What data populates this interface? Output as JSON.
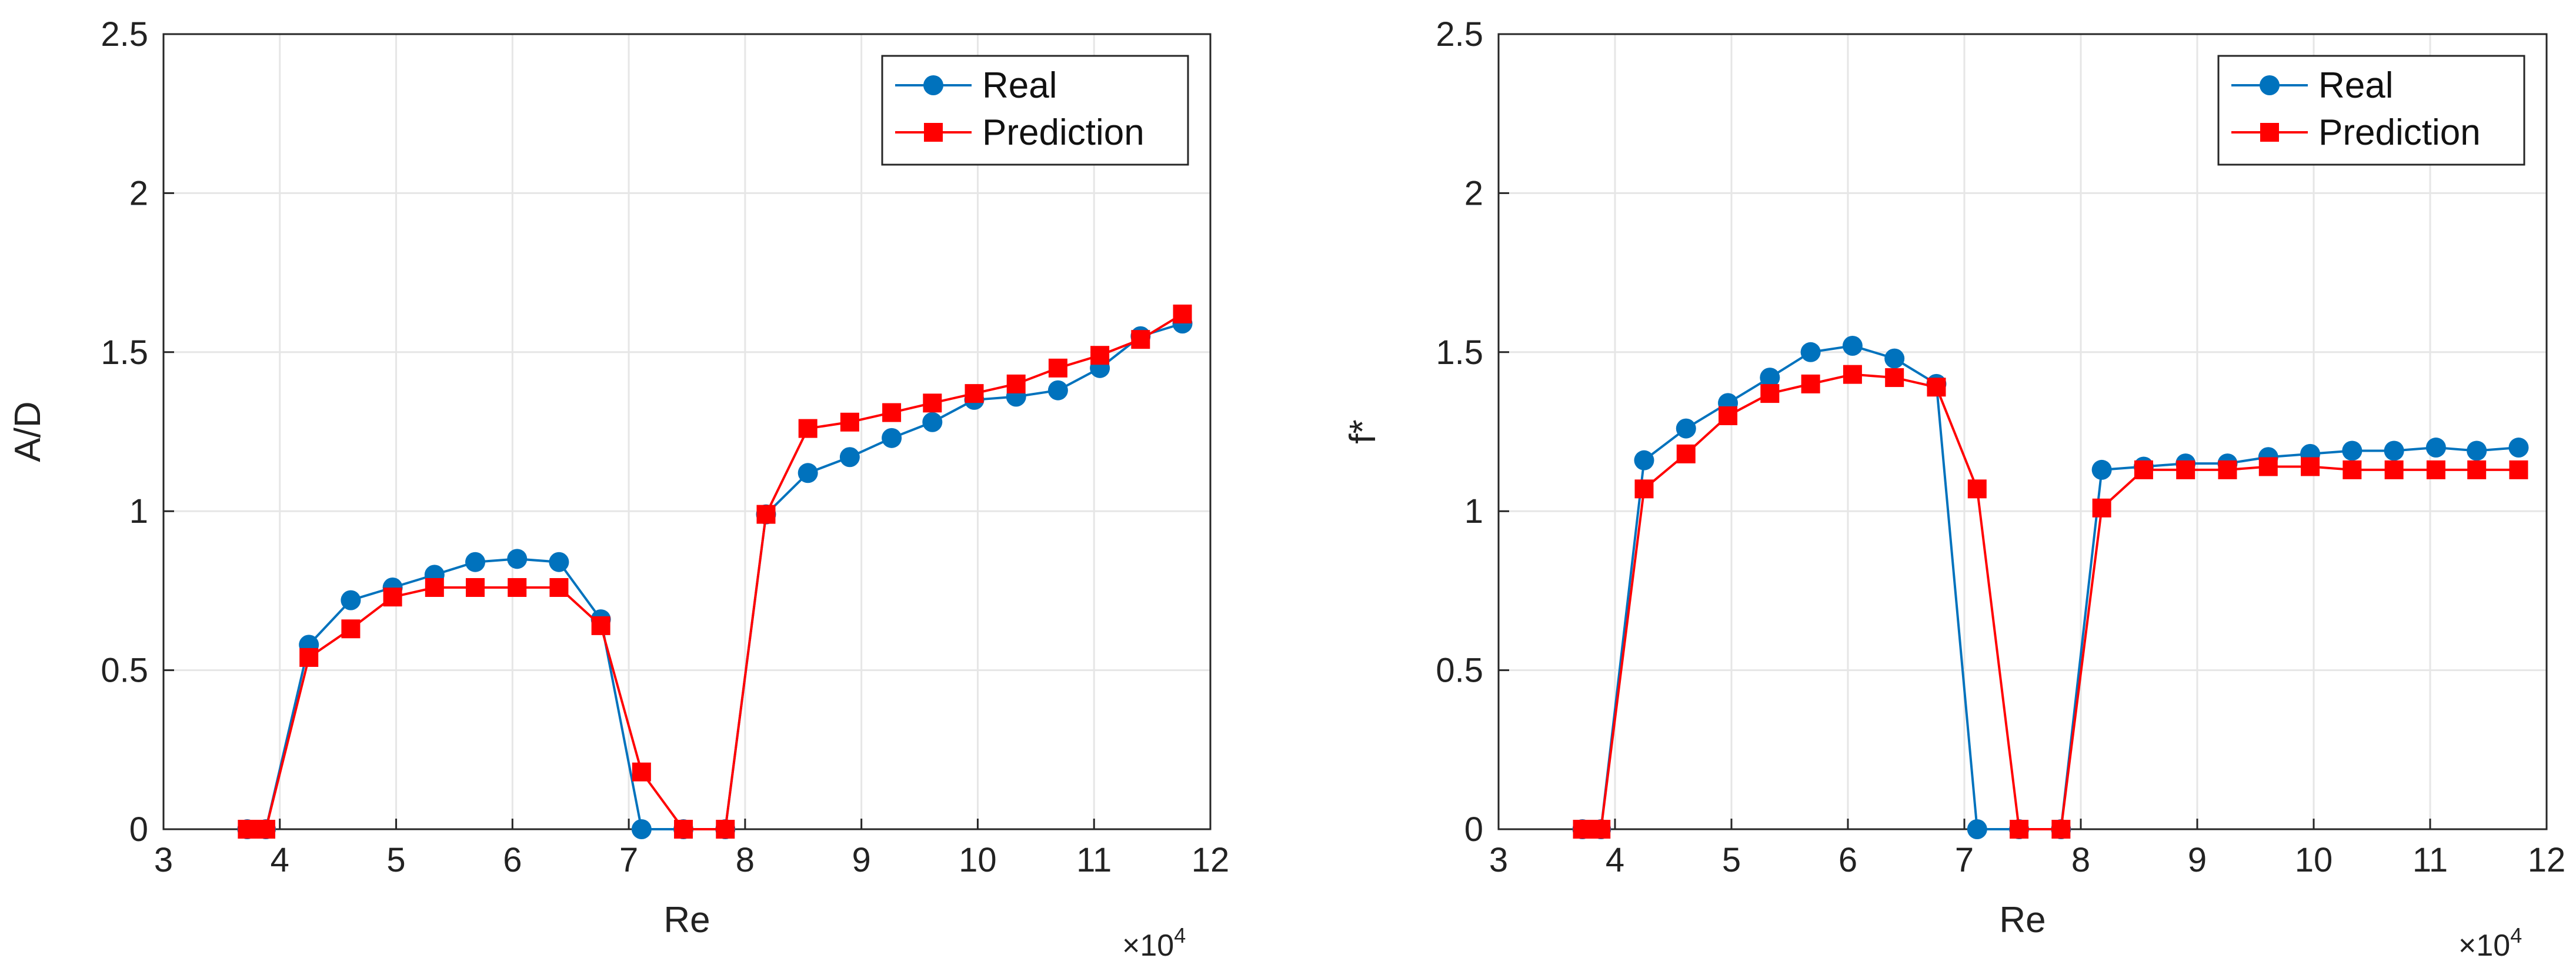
{
  "colors": {
    "real": "#0072BD",
    "prediction": "#FF0000",
    "grid": "#e6e6e6",
    "axis": "#262626"
  },
  "chart_data": [
    {
      "type": "line",
      "name": "amplitude",
      "xlabel": "Re",
      "ylabel": "A/D",
      "x_multiplier": "×10",
      "x_multiplier_exp": "4",
      "xlim": [
        3,
        12
      ],
      "ylim": [
        0,
        2.5
      ],
      "xticks": [
        "3",
        "4",
        "5",
        "6",
        "7",
        "8",
        "9",
        "10",
        "11",
        "12"
      ],
      "yticks": [
        "0",
        "0.5",
        "1",
        "1.5",
        "2",
        "2.5"
      ],
      "grid": true,
      "legend_position": "top-right",
      "series": [
        {
          "name": "Real",
          "marker": "circle",
          "color": "#0072BD",
          "x": [
            3.72,
            3.88,
            4.25,
            4.61,
            4.97,
            5.33,
            5.68,
            6.04,
            6.4,
            6.76,
            7.11,
            7.47,
            7.83,
            8.18,
            8.54,
            8.9,
            9.26,
            9.61,
            9.97,
            10.33,
            10.69,
            11.05,
            11.4,
            11.76
          ],
          "values": [
            0,
            0,
            0.58,
            0.72,
            0.76,
            0.8,
            0.84,
            0.85,
            0.84,
            0.66,
            0,
            0,
            0,
            0.99,
            1.12,
            1.17,
            1.23,
            1.28,
            1.35,
            1.36,
            1.38,
            1.45,
            1.55,
            1.59
          ]
        },
        {
          "name": "Prediction",
          "marker": "square",
          "color": "#FF0000",
          "x": [
            3.72,
            3.88,
            4.25,
            4.61,
            4.97,
            5.33,
            5.68,
            6.04,
            6.4,
            6.76,
            7.11,
            7.47,
            7.83,
            8.18,
            8.54,
            8.9,
            9.26,
            9.61,
            9.97,
            10.33,
            10.69,
            11.05,
            11.4,
            11.76
          ],
          "values": [
            0,
            0,
            0.54,
            0.63,
            0.73,
            0.76,
            0.76,
            0.76,
            0.76,
            0.64,
            0.18,
            0,
            0,
            0.99,
            1.26,
            1.28,
            1.31,
            1.34,
            1.37,
            1.4,
            1.45,
            1.49,
            1.54,
            1.62
          ]
        }
      ]
    },
    {
      "type": "line",
      "name": "frequency",
      "xlabel": "Re",
      "ylabel": "f*",
      "x_multiplier": "×10",
      "x_multiplier_exp": "4",
      "xlim": [
        3,
        12
      ],
      "ylim": [
        0,
        2.5
      ],
      "xticks": [
        "3",
        "4",
        "5",
        "6",
        "7",
        "8",
        "9",
        "10",
        "11",
        "12"
      ],
      "yticks": [
        "0",
        "0.5",
        "1",
        "1.5",
        "2",
        "2.5"
      ],
      "grid": true,
      "legend_position": "top-right",
      "series": [
        {
          "name": "Real",
          "marker": "circle",
          "color": "#0072BD",
          "x": [
            3.72,
            3.88,
            4.25,
            4.61,
            4.97,
            5.33,
            5.68,
            6.04,
            6.4,
            6.76,
            7.11,
            7.47,
            7.83,
            8.18,
            8.54,
            8.9,
            9.26,
            9.61,
            9.97,
            10.33,
            10.69,
            11.05,
            11.4,
            11.76
          ],
          "values": [
            0,
            0,
            1.16,
            1.26,
            1.34,
            1.42,
            1.5,
            1.52,
            1.48,
            1.4,
            0,
            0,
            0,
            1.13,
            1.14,
            1.15,
            1.15,
            1.17,
            1.18,
            1.19,
            1.19,
            1.2,
            1.19,
            1.2
          ]
        },
        {
          "name": "Prediction",
          "marker": "square",
          "color": "#FF0000",
          "x": [
            3.72,
            3.88,
            4.25,
            4.61,
            4.97,
            5.33,
            5.68,
            6.04,
            6.4,
            6.76,
            7.11,
            7.47,
            7.83,
            8.18,
            8.54,
            8.9,
            9.26,
            9.61,
            9.97,
            10.33,
            10.69,
            11.05,
            11.4,
            11.76
          ],
          "values": [
            0,
            0,
            1.07,
            1.18,
            1.3,
            1.37,
            1.4,
            1.43,
            1.42,
            1.39,
            1.07,
            0,
            0,
            1.01,
            1.13,
            1.13,
            1.13,
            1.14,
            1.14,
            1.13,
            1.13,
            1.13,
            1.13,
            1.13
          ]
        }
      ]
    }
  ]
}
